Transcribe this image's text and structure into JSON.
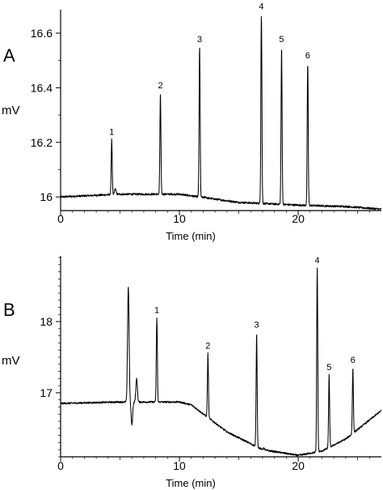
{
  "chart_data": [
    {
      "type": "line",
      "panel_label": "A",
      "ylabel": "mV",
      "xlabel": "Time (min)",
      "xlim": [
        0,
        27
      ],
      "ylim": [
        15.95,
        16.68
      ],
      "x_ticks": [
        0,
        10,
        20
      ],
      "y_ticks": [
        16,
        16.2,
        16.4,
        16.6
      ],
      "y_tick_labels": [
        "16",
        "16.2",
        "16.4",
        "16.6"
      ],
      "baseline": {
        "x": [
          0,
          5,
          10,
          15,
          20,
          24,
          27
        ],
        "y": [
          16.0,
          16.01,
          16.01,
          15.98,
          15.97,
          15.965,
          15.955
        ]
      },
      "peaks": [
        {
          "label": "1",
          "time": 4.3,
          "height": 16.21
        },
        {
          "label": "2",
          "time": 8.4,
          "height": 16.38
        },
        {
          "label": "3",
          "time": 11.7,
          "height": 16.55
        },
        {
          "label": "4",
          "time": 16.9,
          "height": 16.67
        },
        {
          "label": "5",
          "time": 18.6,
          "height": 16.55
        },
        {
          "label": "6",
          "time": 20.8,
          "height": 16.49
        }
      ],
      "minor_features": [
        {
          "time": 4.6,
          "height": 16.03
        },
        {
          "time": 12.2,
          "height": 16.0
        },
        {
          "time": 12.5,
          "height": 15.995
        }
      ]
    },
    {
      "type": "line",
      "panel_label": "B",
      "ylabel": "mV",
      "xlabel": "Time (min)",
      "xlim": [
        0,
        27
      ],
      "ylim": [
        16.1,
        18.9
      ],
      "x_ticks": [
        0,
        10,
        20
      ],
      "y_ticks": [
        17,
        18
      ],
      "y_tick_labels": [
        "17",
        "18"
      ],
      "baseline": {
        "x": [
          0,
          5,
          10,
          11,
          14,
          17,
          20,
          22,
          24,
          25.5,
          27
        ],
        "y": [
          16.85,
          16.87,
          16.87,
          16.83,
          16.45,
          16.2,
          16.12,
          16.18,
          16.35,
          16.55,
          16.75
        ]
      },
      "peaks": [
        {
          "label": "1",
          "time": 8.1,
          "height": 18.05
        },
        {
          "label": "2",
          "time": 12.4,
          "height": 17.55
        },
        {
          "label": "3",
          "time": 16.5,
          "height": 17.85
        },
        {
          "label": "4",
          "time": 21.6,
          "height": 18.75
        },
        {
          "label": "5",
          "time": 22.6,
          "height": 17.25
        },
        {
          "label": "6",
          "time": 24.6,
          "height": 17.35
        }
      ],
      "minor_features": [
        {
          "time": 5.7,
          "height": 18.5
        },
        {
          "time": 6.4,
          "height": 17.2
        },
        {
          "time": 6.0,
          "height": 16.55
        },
        {
          "time": 17.1,
          "height": 16.22
        }
      ]
    }
  ]
}
